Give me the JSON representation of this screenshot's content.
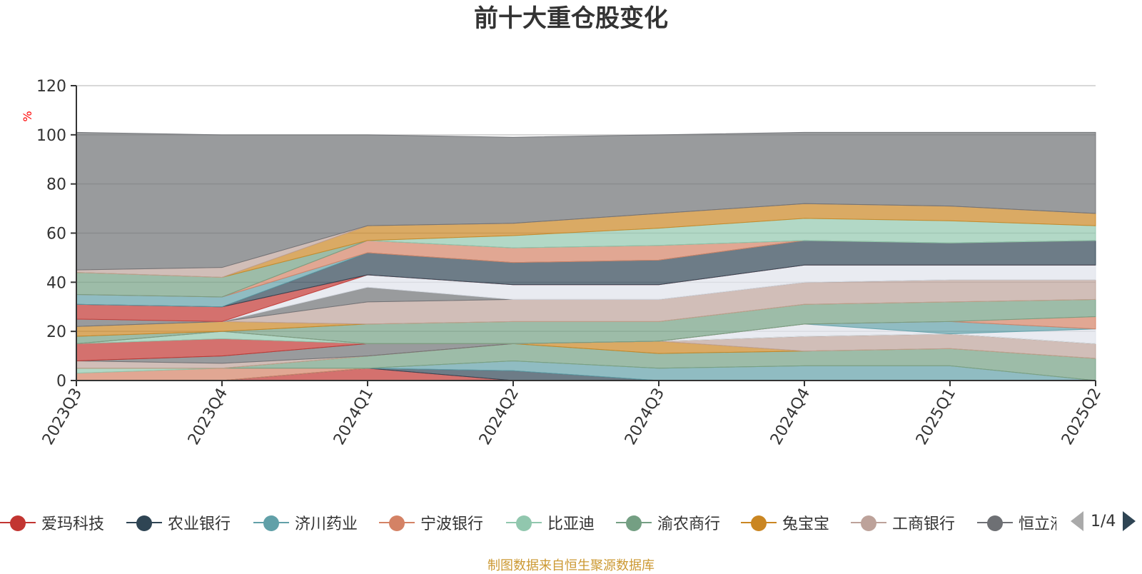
{
  "chart_data": {
    "type": "area",
    "title": "前十大重仓股变化",
    "ylabel": "%",
    "ylim": [
      0,
      120
    ],
    "yticks": [
      0,
      20,
      40,
      60,
      80,
      100,
      120
    ],
    "grid": true,
    "categories": [
      "2023Q3",
      "2023Q4",
      "2024Q1",
      "2024Q2",
      "2024Q3",
      "2024Q4",
      "2025Q1",
      "2025Q2"
    ],
    "stacked": true,
    "series": [
      {
        "name": "爱玛科技",
        "color": "#c23531",
        "values": [
          0,
          0,
          5,
          0,
          0,
          0,
          0,
          0
        ]
      },
      {
        "name": "农业银行",
        "color": "#2f4554",
        "values": [
          0,
          0,
          0,
          4,
          0,
          0,
          0,
          0
        ]
      },
      {
        "name": "济川药业",
        "color": "#61a0a8",
        "values": [
          0,
          0,
          0,
          4,
          5,
          6,
          6,
          0
        ]
      },
      {
        "name": "宁波银行",
        "color": "#d48265",
        "values": [
          3,
          5,
          0,
          0,
          0,
          0,
          0,
          0
        ]
      },
      {
        "name": "比亚迪",
        "color": "#91c7ae",
        "values": [
          2,
          0,
          0,
          0,
          0,
          0,
          0,
          0
        ]
      },
      {
        "name": "渝农商行",
        "color": "#749f83",
        "values": [
          0,
          0,
          5,
          7,
          6,
          6,
          7,
          9
        ]
      },
      {
        "name": "兔宝宝",
        "color": "#ca8622",
        "values": [
          0,
          0,
          0,
          0,
          5,
          0,
          0,
          0
        ]
      },
      {
        "name": "工商银行",
        "color": "#bda29a",
        "values": [
          3,
          2,
          0,
          0,
          0,
          6,
          6,
          6
        ]
      },
      {
        "name": "恒立液压",
        "color": "#6e7074",
        "values": [
          0,
          3,
          5,
          0,
          0,
          0,
          0,
          0
        ]
      },
      {
        "name": "",
        "color": "#c23531",
        "values": [
          7,
          7,
          0,
          0,
          0,
          0,
          0,
          0
        ]
      },
      {
        "name": "",
        "color": "#91c7ae",
        "values": [
          0,
          3,
          0,
          0,
          0,
          0,
          0,
          0
        ]
      },
      {
        "name": "",
        "color": "#dfe3eb",
        "values": [
          0,
          0,
          0,
          0,
          0,
          5,
          0,
          6
        ]
      },
      {
        "name": "",
        "color": "#61a0a8",
        "values": [
          0,
          0,
          0,
          0,
          0,
          0,
          5,
          0
        ]
      },
      {
        "name": "",
        "color": "#d48265",
        "values": [
          0,
          0,
          0,
          0,
          0,
          0,
          0,
          5
        ]
      },
      {
        "name": "",
        "color": "#749f83",
        "values": [
          3,
          0,
          8,
          9,
          8,
          8,
          8,
          7
        ]
      },
      {
        "name": "",
        "color": "#ca8622",
        "values": [
          4,
          4,
          0,
          0,
          0,
          0,
          0,
          0
        ]
      },
      {
        "name": "",
        "color": "#bda29a",
        "values": [
          0,
          0,
          9,
          9,
          9,
          9,
          9,
          8
        ]
      },
      {
        "name": "",
        "color": "#6e7074",
        "values": [
          3,
          0,
          6,
          0,
          0,
          0,
          0,
          0
        ]
      },
      {
        "name": "",
        "color": "#dfe3eb",
        "values": [
          0,
          0,
          5,
          6,
          6,
          7,
          6,
          6
        ]
      },
      {
        "name": "",
        "color": "#c23531",
        "values": [
          6,
          6,
          0,
          0,
          0,
          0,
          0,
          0
        ]
      },
      {
        "name": "",
        "color": "#2f4554",
        "values": [
          0,
          0,
          9,
          9,
          10,
          10,
          9,
          10
        ]
      },
      {
        "name": "",
        "color": "#61a0a8",
        "values": [
          4,
          4,
          0,
          0,
          0,
          0,
          0,
          0
        ]
      },
      {
        "name": "",
        "color": "#d48265",
        "values": [
          0,
          0,
          5,
          6,
          6,
          0,
          0,
          0
        ]
      },
      {
        "name": "",
        "color": "#749f83",
        "values": [
          9,
          8,
          0,
          0,
          0,
          0,
          0,
          0
        ]
      },
      {
        "name": "",
        "color": "#91c7ae",
        "values": [
          0,
          0,
          0,
          5,
          7,
          9,
          9,
          6
        ]
      },
      {
        "name": "",
        "color": "#ca8622",
        "values": [
          0,
          0,
          6,
          5,
          6,
          6,
          6,
          5
        ]
      },
      {
        "name": "",
        "color": "#bda29a",
        "values": [
          1,
          4,
          0,
          0,
          0,
          0,
          0,
          0
        ]
      },
      {
        "name": "",
        "color": "#6e7074",
        "values": [
          56,
          54,
          37,
          35,
          32,
          29,
          30,
          33
        ]
      }
    ]
  },
  "legend": {
    "items": [
      {
        "label": "爱玛科技",
        "color": "#c23531"
      },
      {
        "label": "农业银行",
        "color": "#2f4554"
      },
      {
        "label": "济川药业",
        "color": "#61a0a8"
      },
      {
        "label": "宁波银行",
        "color": "#d48265"
      },
      {
        "label": "比亚迪",
        "color": "#91c7ae"
      },
      {
        "label": "渝农商行",
        "color": "#749f83"
      },
      {
        "label": "兔宝宝",
        "color": "#ca8622"
      },
      {
        "label": "工商银行",
        "color": "#bda29a"
      },
      {
        "label": "恒立液压",
        "color": "#6e7074"
      }
    ],
    "page_text": "1/4"
  },
  "footer": {
    "source": "制图数据来自恒生聚源数据库"
  }
}
